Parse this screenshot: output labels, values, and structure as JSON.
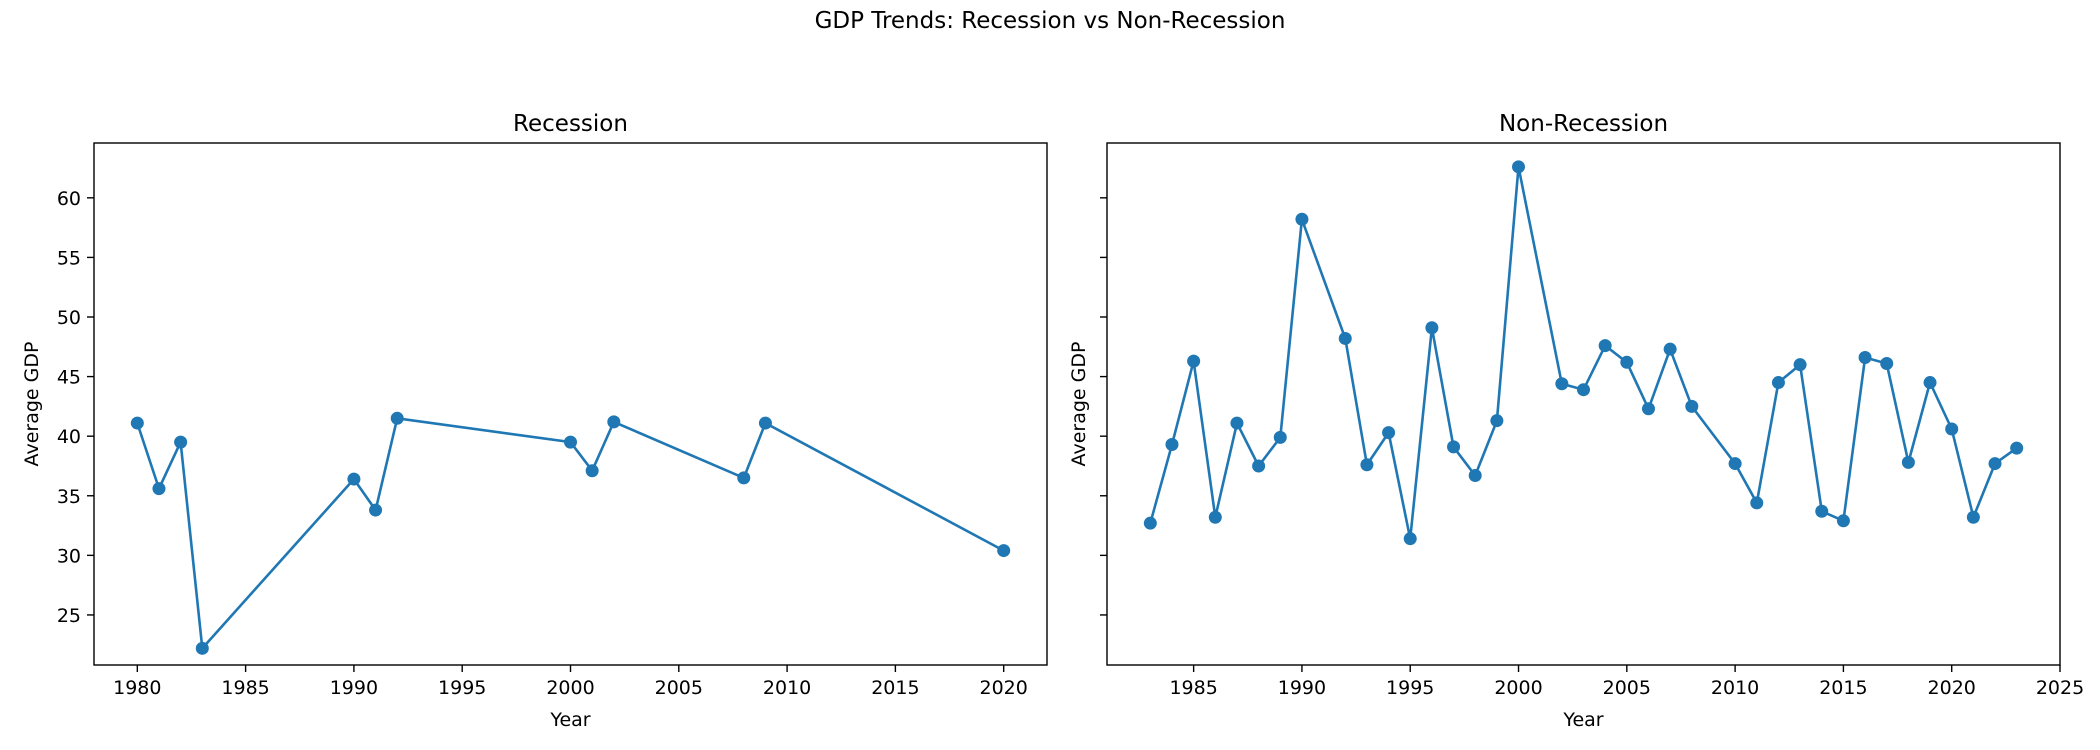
{
  "title": "GDP Trends: Recession vs Non-Recession",
  "colors": {
    "series": "#1f77b4",
    "axis": "#000000",
    "background": "#ffffff"
  },
  "chart_data": [
    {
      "type": "line",
      "title": "Recession",
      "xlabel": "Year",
      "ylabel": "Average GDP",
      "xlim": [
        1978,
        2022
      ],
      "ylim": [
        20.8,
        64.6
      ],
      "xticks": [
        1980,
        1985,
        1990,
        1995,
        2000,
        2005,
        2010,
        2015,
        2020
      ],
      "yticks": [
        25,
        30,
        35,
        40,
        45,
        50,
        55,
        60
      ],
      "show_ytick_labels": true,
      "grid": false,
      "markers": true,
      "series": [
        {
          "x": [
            1980,
            1981,
            1982,
            1983,
            1990,
            1991,
            1992,
            2000,
            2001,
            2002,
            2008,
            2009,
            2020
          ],
          "y": [
            41.1,
            35.6,
            39.5,
            22.2,
            36.4,
            33.8,
            41.5,
            39.5,
            37.1,
            41.2,
            36.5,
            41.1,
            30.4
          ]
        }
      ]
    },
    {
      "type": "line",
      "title": "Non-Recession",
      "xlabel": "Year",
      "ylabel": "Average GDP",
      "xlim": [
        1981,
        2025
      ],
      "ylim": [
        20.8,
        64.6
      ],
      "xticks": [
        1985,
        1990,
        1995,
        2000,
        2005,
        2010,
        2015,
        2020,
        2025
      ],
      "yticks": [
        25,
        30,
        35,
        40,
        45,
        50,
        55,
        60
      ],
      "show_ytick_labels": false,
      "grid": false,
      "markers": true,
      "series": [
        {
          "x": [
            1983,
            1984,
            1985,
            1986,
            1987,
            1988,
            1989,
            1990,
            1992,
            1993,
            1994,
            1995,
            1996,
            1997,
            1998,
            1999,
            2000,
            2002,
            2003,
            2004,
            2005,
            2006,
            2007,
            2008,
            2010,
            2011,
            2012,
            2013,
            2014,
            2015,
            2016,
            2017,
            2018,
            2019,
            2020,
            2021,
            2022,
            2023
          ],
          "y": [
            32.7,
            39.3,
            46.3,
            33.2,
            41.1,
            37.5,
            39.9,
            58.2,
            48.2,
            37.6,
            40.3,
            31.4,
            49.1,
            39.1,
            36.7,
            41.3,
            62.6,
            44.4,
            43.9,
            47.6,
            46.2,
            42.3,
            47.3,
            42.5,
            37.7,
            34.4,
            44.5,
            46.0,
            33.7,
            32.9,
            46.6,
            46.1,
            37.8,
            44.5,
            40.6,
            33.2,
            37.7,
            39.0
          ]
        }
      ]
    }
  ]
}
